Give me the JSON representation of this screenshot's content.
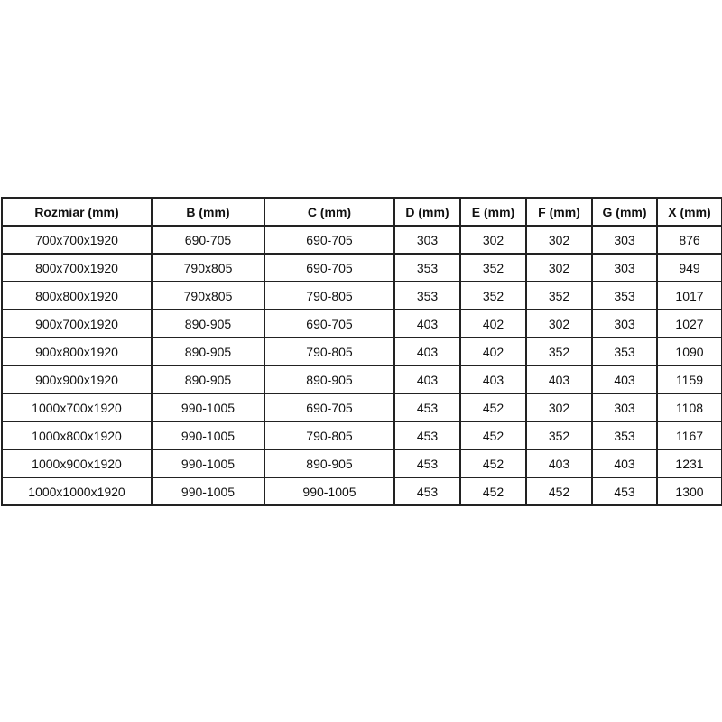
{
  "table": {
    "headers": [
      "Rozmiar (mm)",
      "B (mm)",
      "C (mm)",
      "D (mm)",
      "E (mm)",
      "F (mm)",
      "G (mm)",
      "X (mm)"
    ],
    "rows": [
      [
        "700x700x1920",
        "690-705",
        "690-705",
        "303",
        "302",
        "302",
        "303",
        "876"
      ],
      [
        "800x700x1920",
        "790x805",
        "690-705",
        "353",
        "352",
        "302",
        "303",
        "949"
      ],
      [
        "800x800x1920",
        "790x805",
        "790-805",
        "353",
        "352",
        "352",
        "353",
        "1017"
      ],
      [
        "900x700x1920",
        "890-905",
        "690-705",
        "403",
        "402",
        "302",
        "303",
        "1027"
      ],
      [
        "900x800x1920",
        "890-905",
        "790-805",
        "403",
        "402",
        "352",
        "353",
        "1090"
      ],
      [
        "900x900x1920",
        "890-905",
        "890-905",
        "403",
        "403",
        "403",
        "403",
        "1159"
      ],
      [
        "1000x700x1920",
        "990-1005",
        "690-705",
        "453",
        "452",
        "302",
        "303",
        "1108"
      ],
      [
        "1000x800x1920",
        "990-1005",
        "790-805",
        "453",
        "452",
        "352",
        "353",
        "1167"
      ],
      [
        "1000x900x1920",
        "990-1005",
        "890-905",
        "453",
        "452",
        "403",
        "403",
        "1231"
      ],
      [
        "1000x1000x1920",
        "990-1005",
        "990-1005",
        "453",
        "452",
        "452",
        "453",
        "1300"
      ]
    ]
  }
}
